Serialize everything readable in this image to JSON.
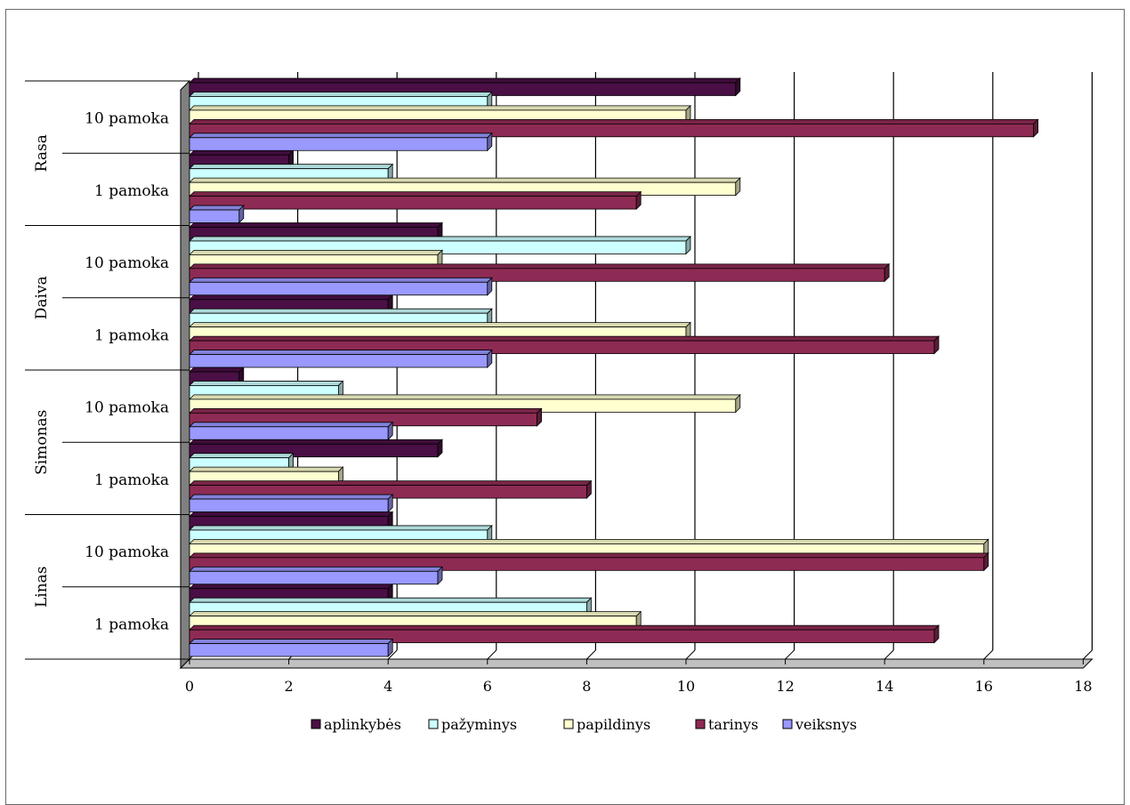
{
  "chart_data": {
    "type": "bar",
    "orientation": "horizontal",
    "style": "3d-clustered",
    "groups": [
      {
        "name": "Linas",
        "categories": [
          "1 pamoka",
          "10 pamoka"
        ]
      },
      {
        "name": "Simonas",
        "categories": [
          "1 pamoka",
          "10 pamoka"
        ]
      },
      {
        "name": "Daiva",
        "categories": [
          "1 pamoka",
          "10 pamoka"
        ]
      },
      {
        "name": "Rasa",
        "categories": [
          "1 pamoka",
          "10 pamoka"
        ]
      }
    ],
    "series": [
      {
        "name": "aplinkybės",
        "color": "#4a0f45",
        "values": [
          4,
          4,
          5,
          1,
          4,
          5,
          2,
          11
        ]
      },
      {
        "name": "pažyminys",
        "color": "#ccffff",
        "values": [
          8,
          6,
          2,
          3,
          6,
          10,
          4,
          6
        ]
      },
      {
        "name": "papildinys",
        "color": "#ffffd0",
        "values": [
          9,
          16,
          3,
          11,
          10,
          5,
          11,
          10
        ]
      },
      {
        "name": "tarinys",
        "color": "#8e2b54",
        "values": [
          15,
          16,
          8,
          7,
          15,
          14,
          9,
          17
        ]
      },
      {
        "name": "veiksnys",
        "color": "#9999ff",
        "values": [
          4,
          5,
          4,
          4,
          6,
          6,
          1,
          6
        ]
      }
    ],
    "xlim": [
      0,
      18
    ],
    "xticks": [
      "0",
      "2",
      "4",
      "6",
      "8",
      "10",
      "12",
      "14",
      "16",
      "18"
    ],
    "grid": true,
    "legend_position": "bottom"
  }
}
